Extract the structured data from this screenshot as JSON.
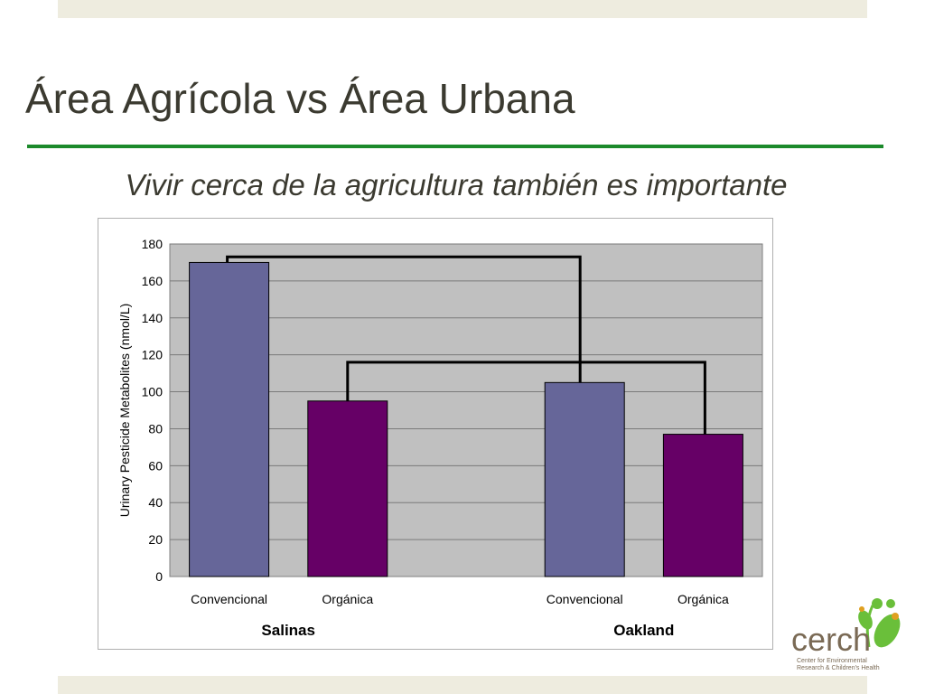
{
  "slide": {
    "title": "Área Agrícola vs Área Urbana",
    "subtitle": "Vivir cerca de la agricultura también es importante"
  },
  "logo": {
    "name": "cerch",
    "tagline_line1": "Center for Environmental",
    "tagline_line2": "Research & Children's Health",
    "colors": {
      "text": "#7a6a55",
      "green": "#6abf3a"
    }
  },
  "chart_data": {
    "type": "bar",
    "title": "",
    "ylabel": "Urinary Pesticide Metabolites (nmol/L)",
    "ylim": [
      0,
      180
    ],
    "yticks": [
      "0",
      "20",
      "40",
      "60",
      "80",
      "100",
      "120",
      "140",
      "160",
      "180"
    ],
    "grid": true,
    "groups": [
      {
        "name": "Salinas",
        "categories": [
          "Convencional",
          "Orgánica"
        ],
        "values": [
          170,
          95
        ]
      },
      {
        "name": "Oakland",
        "categories": [
          "Convencional",
          "Orgánica"
        ],
        "values": [
          105,
          77
        ]
      }
    ],
    "bar_colors": {
      "Convencional": "#666699",
      "Orgánica": "#660066"
    },
    "plot_background": "#c0c0c0",
    "comparison_brackets": [
      {
        "from": "Salinas Convencional",
        "to": "Oakland Convencional",
        "level": 173
      },
      {
        "from": "Salinas Orgánica",
        "to": "Oakland Orgánica",
        "level": 116
      }
    ]
  }
}
